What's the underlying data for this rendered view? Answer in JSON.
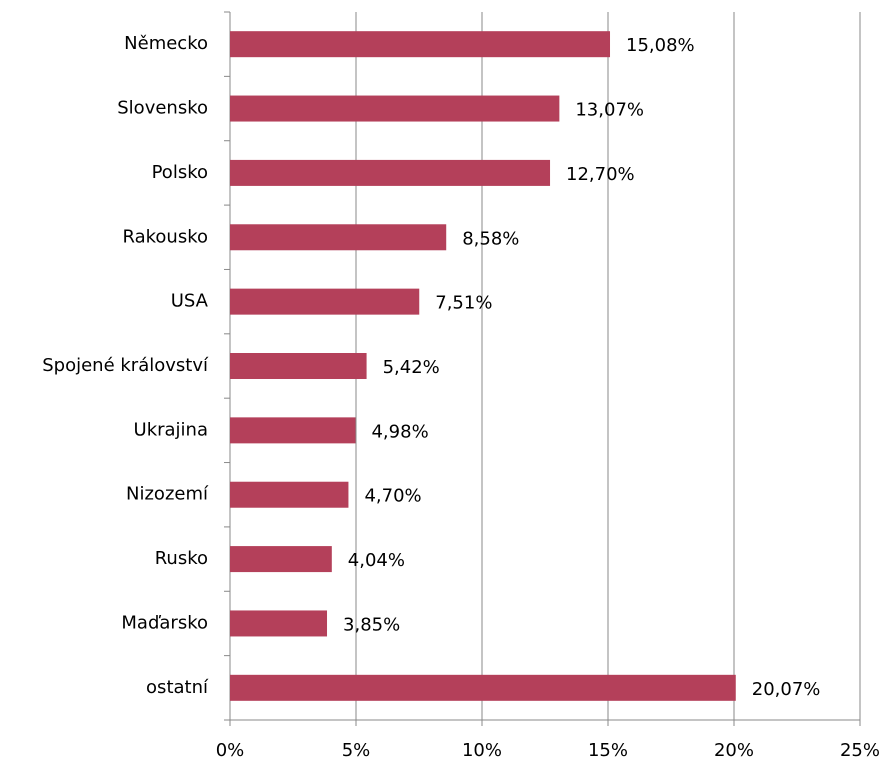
{
  "chart_data": {
    "type": "hbar",
    "categories": [
      "Německo",
      "Slovensko",
      "Polsko",
      "Rakousko",
      "USA",
      "Spojené království",
      "Ukrajina",
      "Nizozemí",
      "Rusko",
      "Maďarsko",
      "ostatní"
    ],
    "values": [
      15.08,
      13.07,
      12.7,
      8.58,
      7.51,
      5.42,
      4.98,
      4.7,
      4.04,
      3.85,
      20.07
    ],
    "value_labels": [
      "15,08%",
      "13,07%",
      "12,70%",
      "8,58%",
      "7,51%",
      "5,42%",
      "4,98%",
      "4,70%",
      "4,04%",
      "3,85%",
      "20,07%"
    ],
    "color": "#b4405a",
    "xlim": [
      0,
      25
    ],
    "xticks": [
      {
        "value": 0,
        "label": "0%"
      },
      {
        "value": 5,
        "label": "5%"
      },
      {
        "value": 10,
        "label": "10%"
      },
      {
        "value": 15,
        "label": "15%"
      },
      {
        "value": 20,
        "label": "20%"
      },
      {
        "value": 25,
        "label": "25%"
      }
    ],
    "grid": true
  }
}
